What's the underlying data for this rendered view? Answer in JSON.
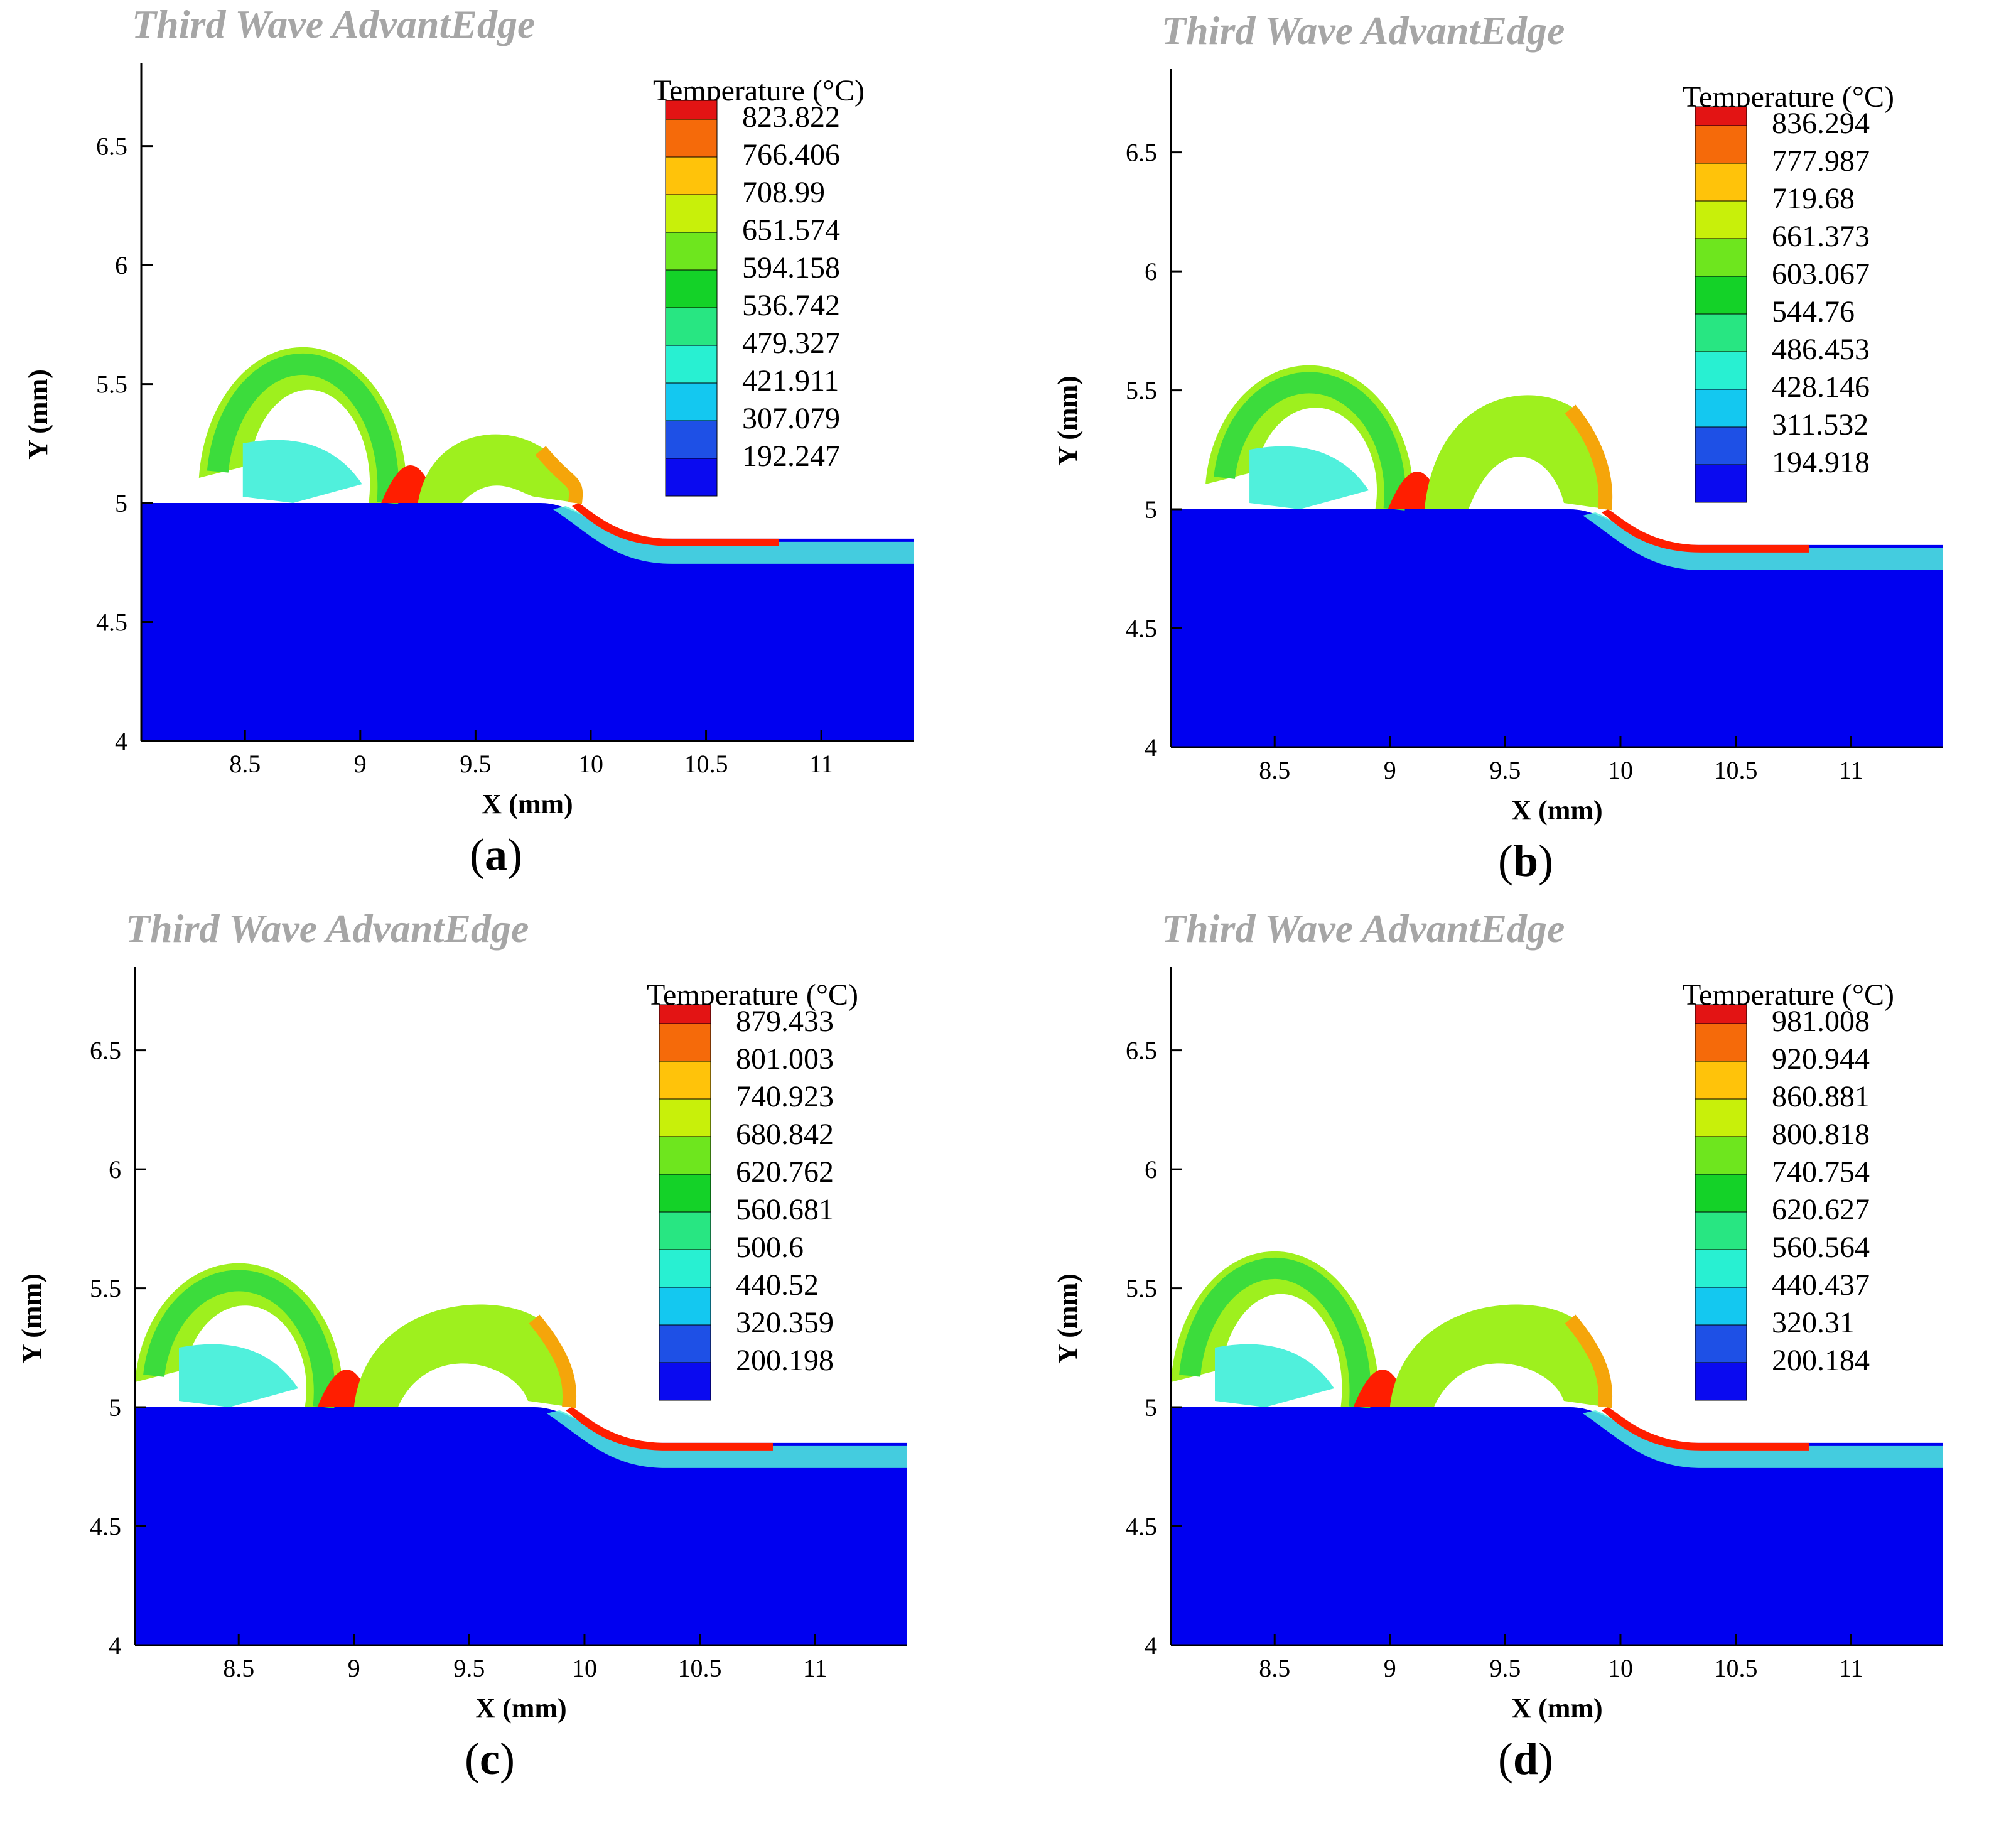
{
  "chart_data": [
    {
      "type": "heatmap",
      "panel_label": "a",
      "brand": "Third Wave AdvantEdge",
      "legend_title": "Temperature (°C)",
      "legend_levels": [
        823.822,
        766.406,
        708.99,
        651.574,
        594.158,
        536.742,
        479.327,
        421.911,
        307.079,
        192.247
      ],
      "legend_labels": [
        "823.822",
        "766.406",
        "708.99",
        "651.574",
        "594.158",
        "536.742",
        "479.327",
        "421.911",
        "307.079",
        "192.247"
      ],
      "xlabel": "X (mm)",
      "ylabel": "Y (mm)",
      "xticks": [
        "8.5",
        "9",
        "9.5",
        "10",
        "10.5",
        "11"
      ],
      "yticks": [
        "4",
        "4.5",
        "5",
        "5.5",
        "6",
        "6.5"
      ],
      "xlim": [
        8.05,
        11.4
      ],
      "ylim": [
        4.0,
        6.85
      ],
      "chip_shape": {
        "first_curl_x": [
          8.3,
          9.2
        ],
        "first_curl_top_y": 5.6,
        "second_segment_x": [
          9.25,
          10.0
        ],
        "second_segment_top_y": 5.3,
        "uncut_surface_y": 5.0,
        "machined_surface_y": 4.85
      }
    },
    {
      "type": "heatmap",
      "panel_label": "b",
      "brand": "Third Wave AdvantEdge",
      "legend_title": "Temperature (°C)",
      "legend_levels": [
        836.294,
        777.987,
        719.68,
        661.373,
        603.067,
        544.76,
        486.453,
        428.146,
        311.532,
        194.918
      ],
      "legend_labels": [
        "836.294",
        "777.987",
        "719.68",
        "661.373",
        "603.067",
        "544.76",
        "486.453",
        "428.146",
        "311.532",
        "194.918"
      ],
      "xlabel": "X (mm)",
      "ylabel": "Y (mm)",
      "xticks": [
        "8.5",
        "9",
        "9.5",
        "10",
        "10.5",
        "11"
      ],
      "yticks": [
        "4",
        "4.5",
        "5",
        "5.5",
        "6",
        "6.5"
      ],
      "xlim": [
        8.05,
        11.4
      ],
      "ylim": [
        4.0,
        6.85
      ],
      "chip_shape": {
        "first_curl_x": [
          8.2,
          9.1
        ],
        "first_curl_top_y": 5.55,
        "second_segment_x": [
          9.15,
          10.0
        ],
        "second_segment_top_y": 5.5,
        "uncut_surface_y": 5.0,
        "machined_surface_y": 4.85
      }
    },
    {
      "type": "heatmap",
      "panel_label": "c",
      "brand": "Third Wave AdvantEdge",
      "legend_title": "Temperature (°C)",
      "legend_levels": [
        879.433,
        801.003,
        740.923,
        680.842,
        620.762,
        560.681,
        500.6,
        440.52,
        320.359,
        200.198
      ],
      "legend_labels": [
        "879.433",
        "801.003",
        "740.923",
        "680.842",
        "620.762",
        "560.681",
        "500.6",
        "440.52",
        "320.359",
        "200.198"
      ],
      "xlabel": "X (mm)",
      "ylabel": "Y (mm)",
      "xticks": [
        "8.5",
        "9",
        "9.5",
        "10",
        "10.5",
        "11"
      ],
      "yticks": [
        "4",
        "4.5",
        "5",
        "5.5",
        "6",
        "6.5"
      ],
      "xlim": [
        8.05,
        11.4
      ],
      "ylim": [
        4.0,
        6.85
      ],
      "chip_shape": {
        "first_curl_x": [
          8.05,
          8.95
        ],
        "first_curl_top_y": 5.55,
        "second_segment_x": [
          9.0,
          10.0
        ],
        "second_segment_top_y": 5.45,
        "uncut_surface_y": 5.0,
        "machined_surface_y": 4.85
      }
    },
    {
      "type": "heatmap",
      "panel_label": "d",
      "brand": "Third Wave AdvantEdge",
      "legend_title": "Temperature (°C)",
      "legend_levels": [
        981.008,
        920.944,
        860.881,
        800.818,
        740.754,
        620.627,
        560.564,
        440.437,
        320.31,
        200.184
      ],
      "legend_labels": [
        "981.008",
        "920.944",
        "860.881",
        "800.818",
        "740.754",
        "620.627",
        "560.564",
        "440.437",
        "320.31",
        "200.184"
      ],
      "xlabel": "X (mm)",
      "ylabel": "Y (mm)",
      "xticks": [
        "8.5",
        "9",
        "9.5",
        "10",
        "10.5",
        "11"
      ],
      "yticks": [
        "4",
        "4.5",
        "5",
        "5.5",
        "6",
        "6.5"
      ],
      "xlim": [
        8.05,
        11.4
      ],
      "ylim": [
        4.0,
        6.85
      ],
      "chip_shape": {
        "first_curl_x": [
          8.05,
          8.95
        ],
        "first_curl_top_y": 5.6,
        "second_segment_x": [
          9.0,
          10.0
        ],
        "second_segment_top_y": 5.45,
        "uncut_surface_y": 5.0,
        "machined_surface_y": 4.85
      }
    }
  ],
  "colors": {
    "legend_bands": [
      "#e31414",
      "#f56a0a",
      "#ffc30a",
      "#c8f00a",
      "#6ee61e",
      "#14d228",
      "#28e682",
      "#28f0d2",
      "#14c8f0",
      "#1e50e6",
      "#0a0af0"
    ],
    "workpiece": "#0000f0",
    "chip_hot": "#ff1e00",
    "chip_warm": "#9ef01e",
    "chip_core": "#3cdc3c",
    "chip_cool": "#50f0dc",
    "brand_gray": "#a6a6a6"
  }
}
